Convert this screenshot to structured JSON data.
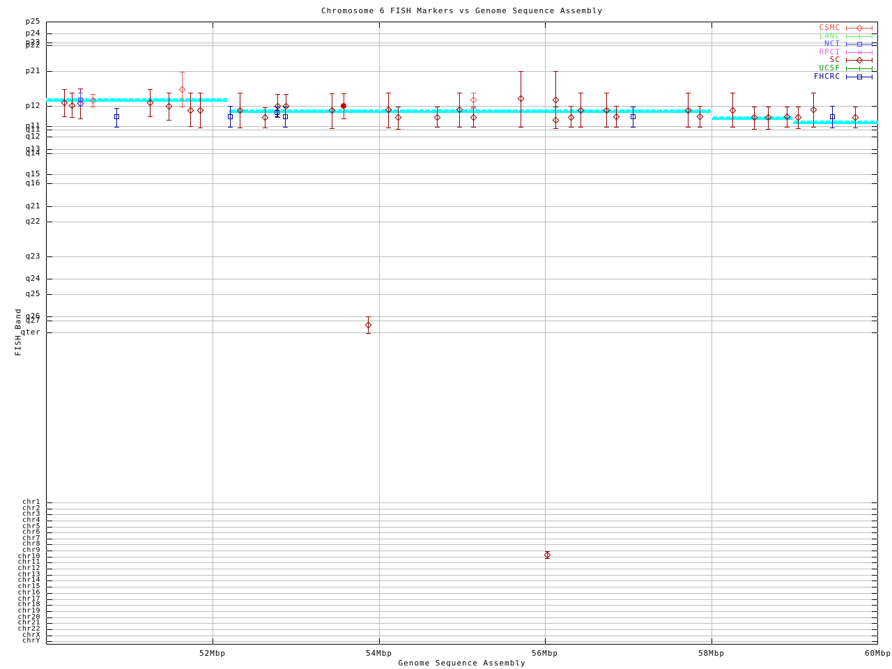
{
  "title": "Chromosome 6 FISH Markers vs Genome Sequence Assembly",
  "chart_data": {
    "type": "scatter",
    "title": "Chromosome 6 FISH Markers vs Genome Sequence Assembly",
    "xlabel": "Genome Sequence Assembly",
    "ylabel": "FISH Band",
    "grid": true,
    "legend_position": "top-right",
    "x_axis": {
      "unit": "Mbp",
      "range_mbp": [
        50,
        60
      ],
      "ticks": [
        {
          "value": 52,
          "label": "52Mbp"
        },
        {
          "value": 54,
          "label": "54Mbp"
        },
        {
          "value": 56,
          "label": "56Mbp"
        },
        {
          "value": 58,
          "label": "58Mbp"
        },
        {
          "value": 60,
          "label": "60Mbp"
        }
      ]
    },
    "y_axis": {
      "note": "categorical FISH cytogenetic bands; y values are band-scale positions (screenshot px)",
      "bands": [
        {
          "label": "p25",
          "y": 31
        },
        {
          "label": "p24",
          "y": 48
        },
        {
          "label": "p23",
          "y": 61
        },
        {
          "label": "p22",
          "y": 65
        },
        {
          "label": "p21",
          "y": 102
        },
        {
          "label": "p12",
          "y": 152
        },
        {
          "label": "p11",
          "y": 181
        },
        {
          "label": "q11",
          "y": 186
        },
        {
          "label": "q12",
          "y": 196
        },
        {
          "label": "q13",
          "y": 214
        },
        {
          "label": "q14",
          "y": 220
        },
        {
          "label": "q15",
          "y": 250
        },
        {
          "label": "q16",
          "y": 263
        },
        {
          "label": "q21",
          "y": 296
        },
        {
          "label": "q22",
          "y": 318
        },
        {
          "label": "q23",
          "y": 368
        },
        {
          "label": "q24",
          "y": 400
        },
        {
          "label": "q25",
          "y": 422
        },
        {
          "label": "q26",
          "y": 454
        },
        {
          "label": "q27",
          "y": 460
        },
        {
          "label": "qter",
          "y": 477
        }
      ],
      "chr_rows": [
        {
          "label": "chr1",
          "y": 721
        },
        {
          "label": "chr2",
          "y": 730
        },
        {
          "label": "chr3",
          "y": 738
        },
        {
          "label": "chr4",
          "y": 747
        },
        {
          "label": "chr5",
          "y": 756
        },
        {
          "label": "chr6",
          "y": 764
        },
        {
          "label": "chr7",
          "y": 773
        },
        {
          "label": "chr8",
          "y": 781
        },
        {
          "label": "chr9",
          "y": 790
        },
        {
          "label": "chr10",
          "y": 799
        },
        {
          "label": "chr11",
          "y": 807
        },
        {
          "label": "chr12",
          "y": 816
        },
        {
          "label": "chr13",
          "y": 825
        },
        {
          "label": "chr14",
          "y": 833
        },
        {
          "label": "chr15",
          "y": 842
        },
        {
          "label": "chr16",
          "y": 851
        },
        {
          "label": "chr17",
          "y": 860
        },
        {
          "label": "chr18",
          "y": 868
        },
        {
          "label": "chr19",
          "y": 877
        },
        {
          "label": "chr20",
          "y": 886
        },
        {
          "label": "chr21",
          "y": 894
        },
        {
          "label": "chr22",
          "y": 903
        },
        {
          "label": "chrX",
          "y": 912
        },
        {
          "label": "chrY",
          "y": 920
        }
      ]
    },
    "legend": [
      {
        "name": "CSMC",
        "color": "#f05050",
        "marker": "diamond"
      },
      {
        "name": "LANL",
        "color": "#66ee66",
        "marker": "plus"
      },
      {
        "name": "NCI",
        "color": "#5050ff",
        "marker": "square"
      },
      {
        "name": "RPCI",
        "color": "#ee60ee",
        "marker": "x"
      },
      {
        "name": "SC",
        "color": "#990000",
        "marker": "diamond"
      },
      {
        "name": "UCSF",
        "color": "#00a000",
        "marker": "plus"
      },
      {
        "name": "FHCRC",
        "color": "#0000a0",
        "marker": "square"
      }
    ],
    "point_format": "[x_mbp, y, err_low, err_high]",
    "series": [
      {
        "name": "SC",
        "color": "#990000",
        "marker": "diamond",
        "points": [
          [
            50.22,
            147,
            128,
            167
          ],
          [
            50.31,
            151,
            133,
            168
          ],
          [
            50.41,
            148,
            127,
            170
          ],
          [
            51.25,
            147,
            128,
            167
          ],
          [
            51.47,
            152,
            133,
            172
          ],
          [
            51.73,
            158,
            133,
            181
          ],
          [
            51.85,
            158,
            133,
            183
          ],
          [
            52.33,
            158,
            133,
            183
          ],
          [
            52.63,
            168,
            154,
            183
          ],
          [
            52.78,
            152,
            135,
            168
          ],
          [
            52.88,
            152,
            135,
            153
          ],
          [
            53.43,
            158,
            134,
            184
          ],
          [
            53.87,
            466,
            454,
            478
          ],
          [
            54.11,
            157,
            133,
            183
          ],
          [
            54.23,
            168,
            153,
            185
          ],
          [
            54.7,
            168,
            153,
            182
          ],
          [
            54.97,
            157,
            133,
            182
          ],
          [
            55.13,
            168,
            153,
            182
          ],
          [
            55.7,
            141,
            102,
            182
          ],
          [
            56.02,
            796,
            791,
            801
          ],
          [
            56.12,
            143,
            102,
            184
          ],
          [
            56.12,
            172,
            153,
            184
          ],
          [
            56.31,
            168,
            152,
            182
          ],
          [
            56.42,
            158,
            133,
            182
          ],
          [
            56.73,
            158,
            133,
            182
          ],
          [
            56.85,
            167,
            152,
            182
          ],
          [
            57.71,
            158,
            133,
            182
          ],
          [
            57.86,
            167,
            152,
            182
          ],
          [
            58.25,
            158,
            133,
            182
          ],
          [
            58.51,
            168,
            153,
            185
          ],
          [
            58.68,
            168,
            153,
            185
          ],
          [
            58.9,
            167,
            153,
            182
          ],
          [
            59.04,
            168,
            153,
            184
          ],
          [
            59.22,
            157,
            133,
            182
          ],
          [
            59.72,
            168,
            153,
            183
          ]
        ]
      },
      {
        "name": "SC-filled",
        "color": "#cc0000",
        "marker": "circle-filled",
        "points": [
          [
            53.58,
            152,
            134,
            170
          ]
        ]
      },
      {
        "name": "CSMC",
        "color": "#f05050",
        "marker": "diamond",
        "points": [
          [
            50.56,
            144,
            135,
            153
          ],
          [
            51.63,
            128,
            103,
            153
          ],
          [
            55.13,
            143,
            133,
            155
          ]
        ]
      },
      {
        "name": "NCI",
        "color": "#5050ff",
        "marker": "square",
        "points": [
          [
            50.41,
            143,
            133,
            152
          ]
        ]
      },
      {
        "name": "FHCRC",
        "color": "#0000a0",
        "marker": "square",
        "points": [
          [
            50.85,
            167,
            155,
            182
          ],
          [
            52.21,
            167,
            152,
            182
          ],
          [
            52.77,
            161,
            153,
            167
          ],
          [
            52.87,
            167,
            153,
            182
          ],
          [
            57.05,
            167,
            153,
            182
          ],
          [
            59.45,
            167,
            152,
            183
          ]
        ]
      }
    ],
    "assembly_track": {
      "name": "genome-assembly-band-track",
      "color": "#00ffff",
      "segment_format": "[x1_mbp, x2_mbp, y]",
      "segments": [
        [
          50.0,
          52.18,
          143
        ],
        [
          52.2,
          57.99,
          159
        ],
        [
          58.0,
          58.97,
          169
        ],
        [
          58.98,
          60.0,
          175
        ]
      ]
    },
    "colors": {
      "grid": "#bdbdbd",
      "border": "#000000",
      "background": "#ffffff"
    }
  }
}
